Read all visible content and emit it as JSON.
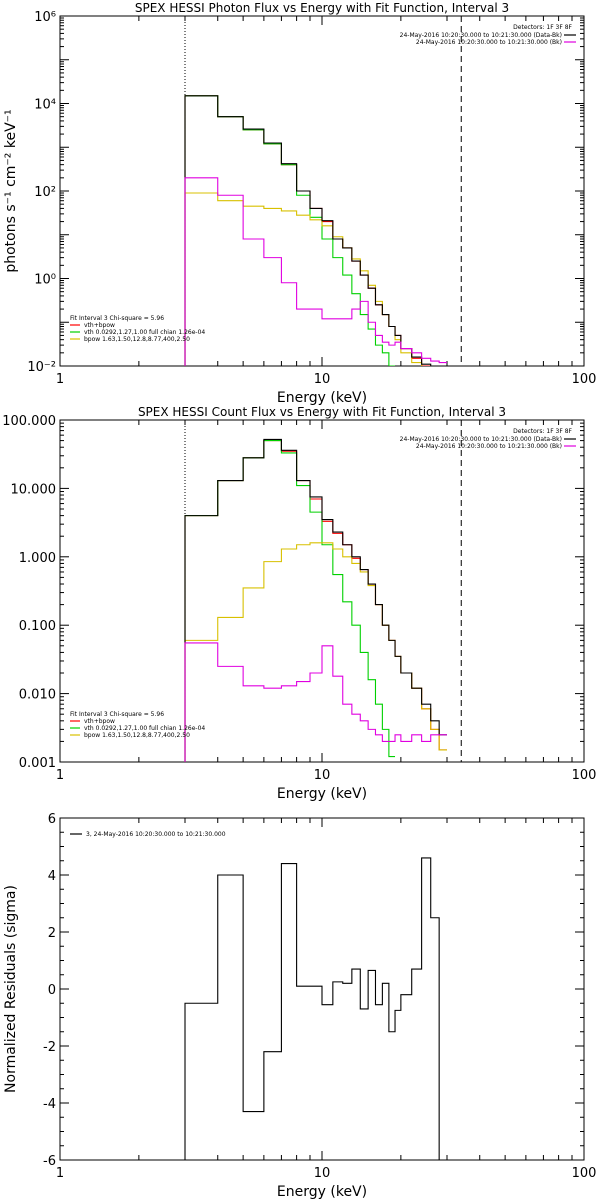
{
  "colors": {
    "background": "#ffffff",
    "foreground": "#000000",
    "data": "#000000",
    "total_model": "#ff0000",
    "thermal": "#00d000",
    "broken_powerlaw": "#d8c000",
    "background_series": "#e000e0"
  },
  "chart_data": [
    {
      "type": "line",
      "title": "SPEX HESSI Photon Flux vs Energy with Fit Function, Interval 3",
      "xlabel": "Energy (keV)",
      "ylabel": "photons s⁻¹ cm⁻² keV⁻¹",
      "xscale": "log",
      "yscale": "log",
      "xlim": [
        1,
        100
      ],
      "ylim": [
        0.01,
        1000000
      ],
      "xticks": [
        1,
        10,
        100
      ],
      "xtick_labels": [
        "1",
        "10",
        "100"
      ],
      "yticks": [
        0.01,
        1,
        100,
        10000,
        1000000
      ],
      "ytick_labels": [
        "10⁻²",
        "10⁰",
        "10²",
        "10⁴",
        "10⁶"
      ],
      "vlines": [
        {
          "x": 3.0,
          "style": "dotted"
        },
        {
          "x": 34.0,
          "style": "dashed"
        }
      ],
      "top_legend_title": "Detectors: 1F 3F 8F",
      "top_legend": [
        {
          "label": "24-May-2016 10:20:30.000 to 10:21:30.000 (Data-Bk)",
          "color": "#000000"
        },
        {
          "label": "24-May-2016 10:20:30.000 to 10:21:30.000 (Bk)",
          "color": "#e000e0"
        }
      ],
      "fit_legend_title": "Fit Interval  3   Chi-square = 5.96",
      "fit_legend": [
        {
          "label": "vth+bpow",
          "color": "#ff0000"
        },
        {
          "label": "vth 0.0292,1.27,1.00  full chian 1.26e-04",
          "color": "#00d000"
        },
        {
          "label": "bpow 1.63,1.50,12.8,8.77,400,2.50",
          "color": "#d8c000"
        }
      ],
      "edges": [
        3,
        4,
        5,
        6,
        7,
        8,
        9,
        10,
        11,
        12,
        13,
        14,
        15,
        16,
        17,
        18,
        19,
        20,
        22,
        24,
        26,
        28,
        30,
        34
      ],
      "series": [
        {
          "name": "vth+bpow",
          "color": "#ff0000",
          "values": [
            15000,
            5000,
            2500,
            1200,
            400,
            100,
            40,
            20,
            8,
            5,
            2.5,
            1.2,
            0.6,
            0.25,
            0.15,
            0.08,
            0.05,
            0.025,
            0.015,
            0.01
          ]
        },
        {
          "name": "vth",
          "color": "#00d000",
          "values": [
            15000,
            5000,
            2500,
            1200,
            400,
            80,
            25,
            8,
            3,
            1.2,
            0.45,
            0.15,
            0.07,
            0.03,
            0.02,
            0.01
          ]
        },
        {
          "name": "bpow",
          "color": "#d8c000",
          "values": [
            90,
            60,
            45,
            40,
            35,
            28,
            22,
            16,
            9,
            5,
            2.8,
            1.5,
            0.7,
            0.3,
            0.15,
            0.08,
            0.04,
            0.02,
            0.012,
            0.008
          ]
        },
        {
          "name": "data",
          "color": "#000000",
          "values": [
            15000,
            5000,
            2600,
            1250,
            420,
            100,
            40,
            21,
            8,
            5,
            2.5,
            1.2,
            0.6,
            0.25,
            0.15,
            0.08,
            0.05,
            0.025,
            0.016,
            0.011,
            0.01,
            0.01
          ]
        },
        {
          "name": "background",
          "color": "#e000e0",
          "values": [
            200,
            80,
            8,
            3,
            0.8,
            0.2,
            0.2,
            0.12,
            0.12,
            0.12,
            0.2,
            0.3,
            0.1,
            0.05,
            0.035,
            0.03,
            0.035,
            0.025,
            0.02,
            0.015,
            0.013,
            0.012
          ]
        }
      ]
    },
    {
      "type": "line",
      "title": "SPEX HESSI Count Flux vs Energy with Fit Function, Interval 3",
      "xlabel": "Energy (keV)",
      "ylabel": "",
      "xscale": "log",
      "yscale": "log",
      "xlim": [
        1,
        100
      ],
      "ylim": [
        0.001,
        100
      ],
      "xticks": [
        1,
        10,
        100
      ],
      "xtick_labels": [
        "1",
        "10",
        "100"
      ],
      "yticks": [
        0.001,
        0.01,
        0.1,
        1,
        10,
        100
      ],
      "ytick_labels": [
        "0.001",
        "0.010",
        "0.100",
        "1.000",
        "10.000",
        "100.000"
      ],
      "vlines": [
        {
          "x": 3.0,
          "style": "dotted"
        },
        {
          "x": 34.0,
          "style": "dashed"
        }
      ],
      "top_legend_title": "Detectors: 1F 3F 8F",
      "top_legend": [
        {
          "label": "24-May-2016 10:20:30.000 to 10:21:30.000 (Data-Bk)",
          "color": "#000000"
        },
        {
          "label": "24-May-2016 10:20:30.000 to 10:21:30.000 (Bk)",
          "color": "#e000e0"
        }
      ],
      "fit_legend_title": "Fit Interval  3   Chi-square = 5.96",
      "fit_legend": [
        {
          "label": "vth+bpow",
          "color": "#ff0000"
        },
        {
          "label": "vth 0.0292,1.27,1.00  full chian 1.26e-04",
          "color": "#00d000"
        },
        {
          "label": "bpow 1.63,1.50,12.8,8.77,400,2.50",
          "color": "#d8c000"
        }
      ],
      "edges": [
        3,
        4,
        5,
        6,
        7,
        8,
        9,
        10,
        11,
        12,
        13,
        14,
        15,
        16,
        17,
        18,
        19,
        20,
        22,
        24,
        26,
        28,
        30,
        34
      ],
      "series": [
        {
          "name": "vth+bpow",
          "color": "#ff0000",
          "values": [
            4,
            13,
            28,
            50,
            35,
            13,
            7,
            3.3,
            2.2,
            1.5,
            0.95,
            0.65,
            0.4,
            0.2,
            0.1,
            0.06,
            0.035,
            0.02,
            0.012,
            0.006,
            0.003,
            0.0015
          ]
        },
        {
          "name": "vth",
          "color": "#00d000",
          "values": [
            4,
            13,
            28,
            50,
            33,
            11,
            4.5,
            1.5,
            0.55,
            0.22,
            0.1,
            0.04,
            0.016,
            0.007,
            0.003,
            0.0012
          ]
        },
        {
          "name": "bpow",
          "color": "#d8c000",
          "values": [
            0.06,
            0.13,
            0.35,
            0.85,
            1.3,
            1.5,
            1.6,
            1.6,
            1.3,
            1.0,
            0.8,
            0.6,
            0.38,
            0.2,
            0.1,
            0.06,
            0.035,
            0.02,
            0.012,
            0.006,
            0.003,
            0.0015
          ]
        },
        {
          "name": "data",
          "color": "#000000",
          "values": [
            4,
            13,
            28,
            52,
            36,
            13,
            7.5,
            3.5,
            2.3,
            1.5,
            1.0,
            0.65,
            0.4,
            0.2,
            0.1,
            0.06,
            0.035,
            0.02,
            0.012,
            0.007,
            0.004,
            0.0025
          ]
        },
        {
          "name": "background",
          "color": "#e000e0",
          "values": [
            0.055,
            0.025,
            0.013,
            0.012,
            0.013,
            0.015,
            0.02,
            0.05,
            0.018,
            0.007,
            0.005,
            0.004,
            0.003,
            0.0025,
            0.002,
            0.002,
            0.0025,
            0.002,
            0.0025,
            0.002,
            0.0025,
            0.0025
          ]
        }
      ]
    },
    {
      "type": "line",
      "title": "",
      "xlabel": "Energy (keV)",
      "ylabel": "Normalized Residuals (sigma)",
      "xscale": "log",
      "yscale": "linear",
      "xlim": [
        1,
        100
      ],
      "ylim": [
        -6,
        6
      ],
      "xticks": [
        1,
        10,
        100
      ],
      "xtick_labels": [
        "1",
        "10",
        "100"
      ],
      "yticks": [
        -6,
        -4,
        -2,
        0,
        2,
        4,
        6
      ],
      "ytick_labels": [
        "-6",
        "-4",
        "-2",
        "0",
        "2",
        "4",
        "6"
      ],
      "top_legend_title": "",
      "top_legend": [],
      "legend_line": "3, 24-May-2016 10:20:30.000 to 10:21:30.000",
      "edges": [
        3,
        4,
        5,
        6,
        7,
        8,
        9,
        10,
        11,
        12,
        13,
        14,
        15,
        16,
        17,
        18,
        19,
        20,
        22,
        24,
        26,
        28,
        30,
        32,
        34
      ],
      "series": [
        {
          "name": "residuals",
          "color": "#000000",
          "values": [
            -0.5,
            4.0,
            -4.3,
            -2.2,
            4.4,
            0.1,
            0.1,
            -0.55,
            0.25,
            0.2,
            0.7,
            -0.7,
            0.65,
            -0.55,
            0.2,
            -1.5,
            -0.75,
            -0.2,
            0.7,
            4.6,
            2.5
          ]
        }
      ]
    }
  ]
}
